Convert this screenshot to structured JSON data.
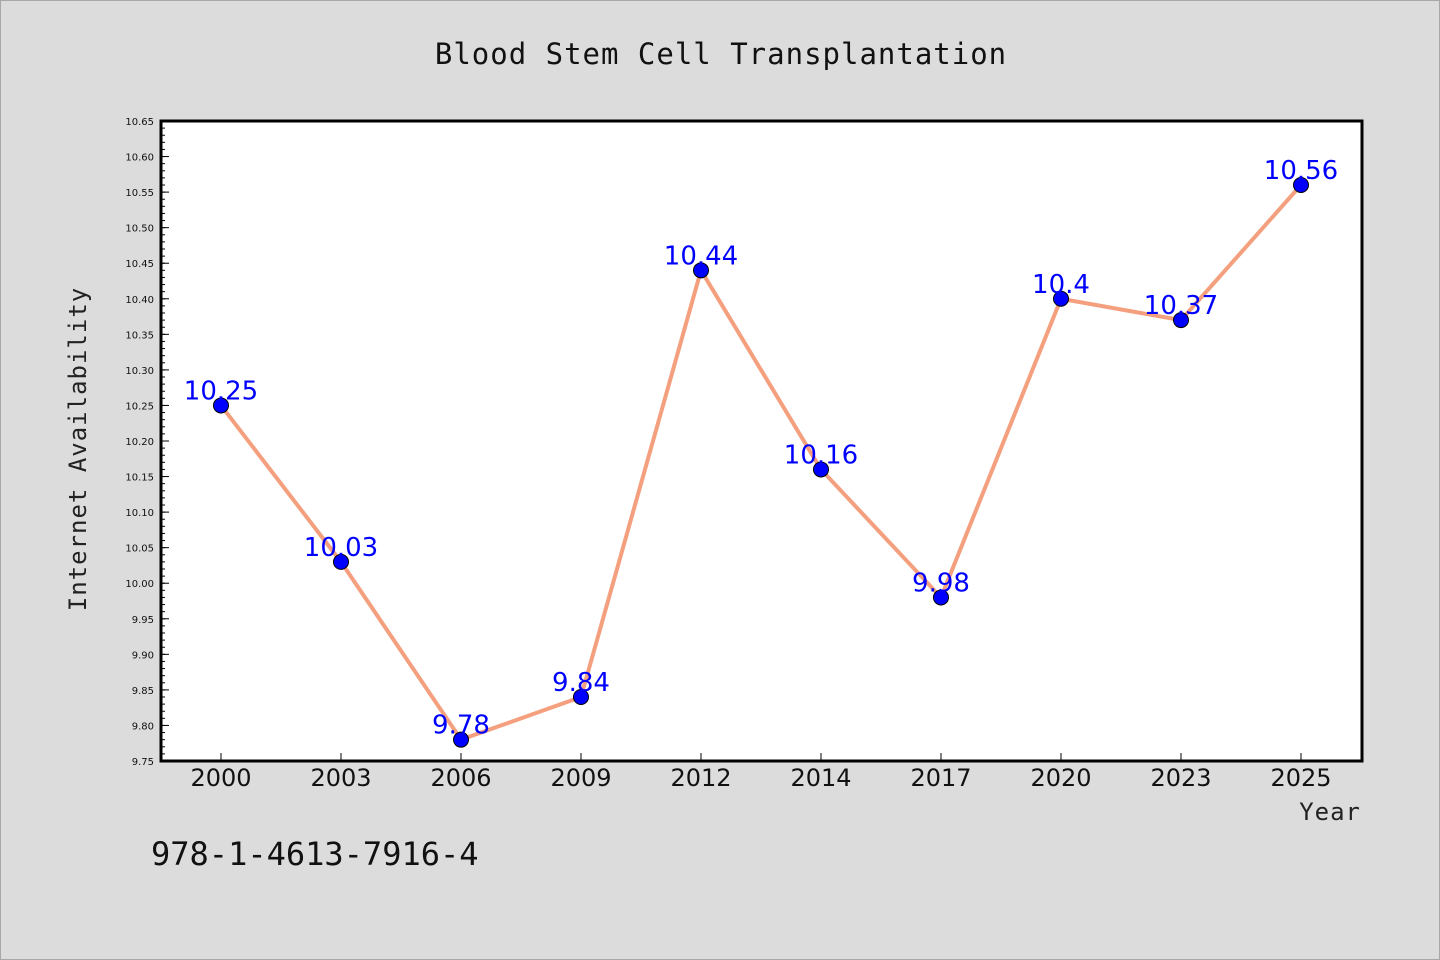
{
  "chart_data": {
    "type": "line",
    "title": "Blood Stem Cell Transplantation",
    "xlabel": "Year",
    "ylabel": "Internet Availability",
    "categories": [
      "2000",
      "2003",
      "2006",
      "2009",
      "2012",
      "2014",
      "2017",
      "2020",
      "2023",
      "2025"
    ],
    "series": [
      {
        "values": [
          10.25,
          10.03,
          9.78,
          9.84,
          10.44,
          10.16,
          9.98,
          10.4,
          10.37,
          10.56
        ],
        "data_labels": [
          "10.25",
          "10.03",
          "9.78",
          "9.84",
          "10.44",
          "10.16",
          "9.98",
          "10.4",
          "10.37",
          "10.56"
        ],
        "line_color": "#f4a07f",
        "marker_color": "#0000ff"
      }
    ],
    "ylim": [
      9.75,
      10.65
    ],
    "yticks": [
      "9.75",
      "9.80",
      "9.85",
      "9.90",
      "9.95",
      "10.00",
      "10.05",
      "10.10",
      "10.15",
      "10.20",
      "10.25",
      "10.30",
      "10.35",
      "10.40",
      "10.45",
      "10.50",
      "10.55",
      "10.60",
      "10.65"
    ],
    "grid": false,
    "legend": "none",
    "background_color": "#dcdcdc",
    "plot_background_color": "#ffffff",
    "label_color": "#0000ff"
  },
  "footer": {
    "isbn": "978-1-4613-7916-4"
  }
}
